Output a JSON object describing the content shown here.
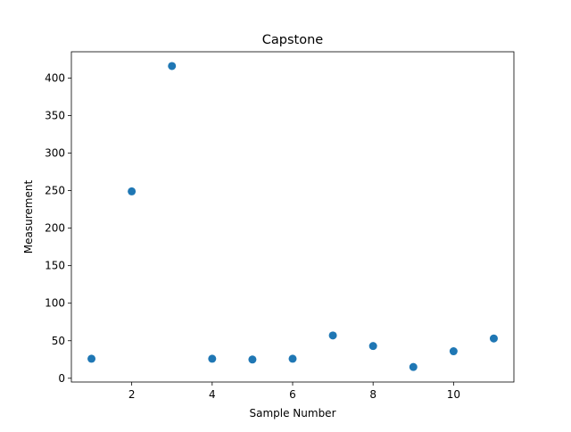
{
  "chart_data": {
    "type": "scatter",
    "title": "Capstone",
    "xlabel": "Sample Number",
    "ylabel": "Measurement",
    "xlim": [
      0.5,
      11.5
    ],
    "ylim": [
      -5,
      435
    ],
    "xticks": [
      2,
      4,
      6,
      8,
      10
    ],
    "yticks": [
      0,
      50,
      100,
      150,
      200,
      250,
      300,
      350,
      400
    ],
    "grid": false,
    "legend": "none",
    "marker_color": "#1f77b4",
    "points": [
      {
        "x": 1,
        "y": 26
      },
      {
        "x": 2,
        "y": 249
      },
      {
        "x": 3,
        "y": 416
      },
      {
        "x": 4,
        "y": 26
      },
      {
        "x": 5,
        "y": 25
      },
      {
        "x": 6,
        "y": 26
      },
      {
        "x": 7,
        "y": 57
      },
      {
        "x": 8,
        "y": 43
      },
      {
        "x": 9,
        "y": 15
      },
      {
        "x": 10,
        "y": 36
      },
      {
        "x": 11,
        "y": 53
      }
    ]
  }
}
